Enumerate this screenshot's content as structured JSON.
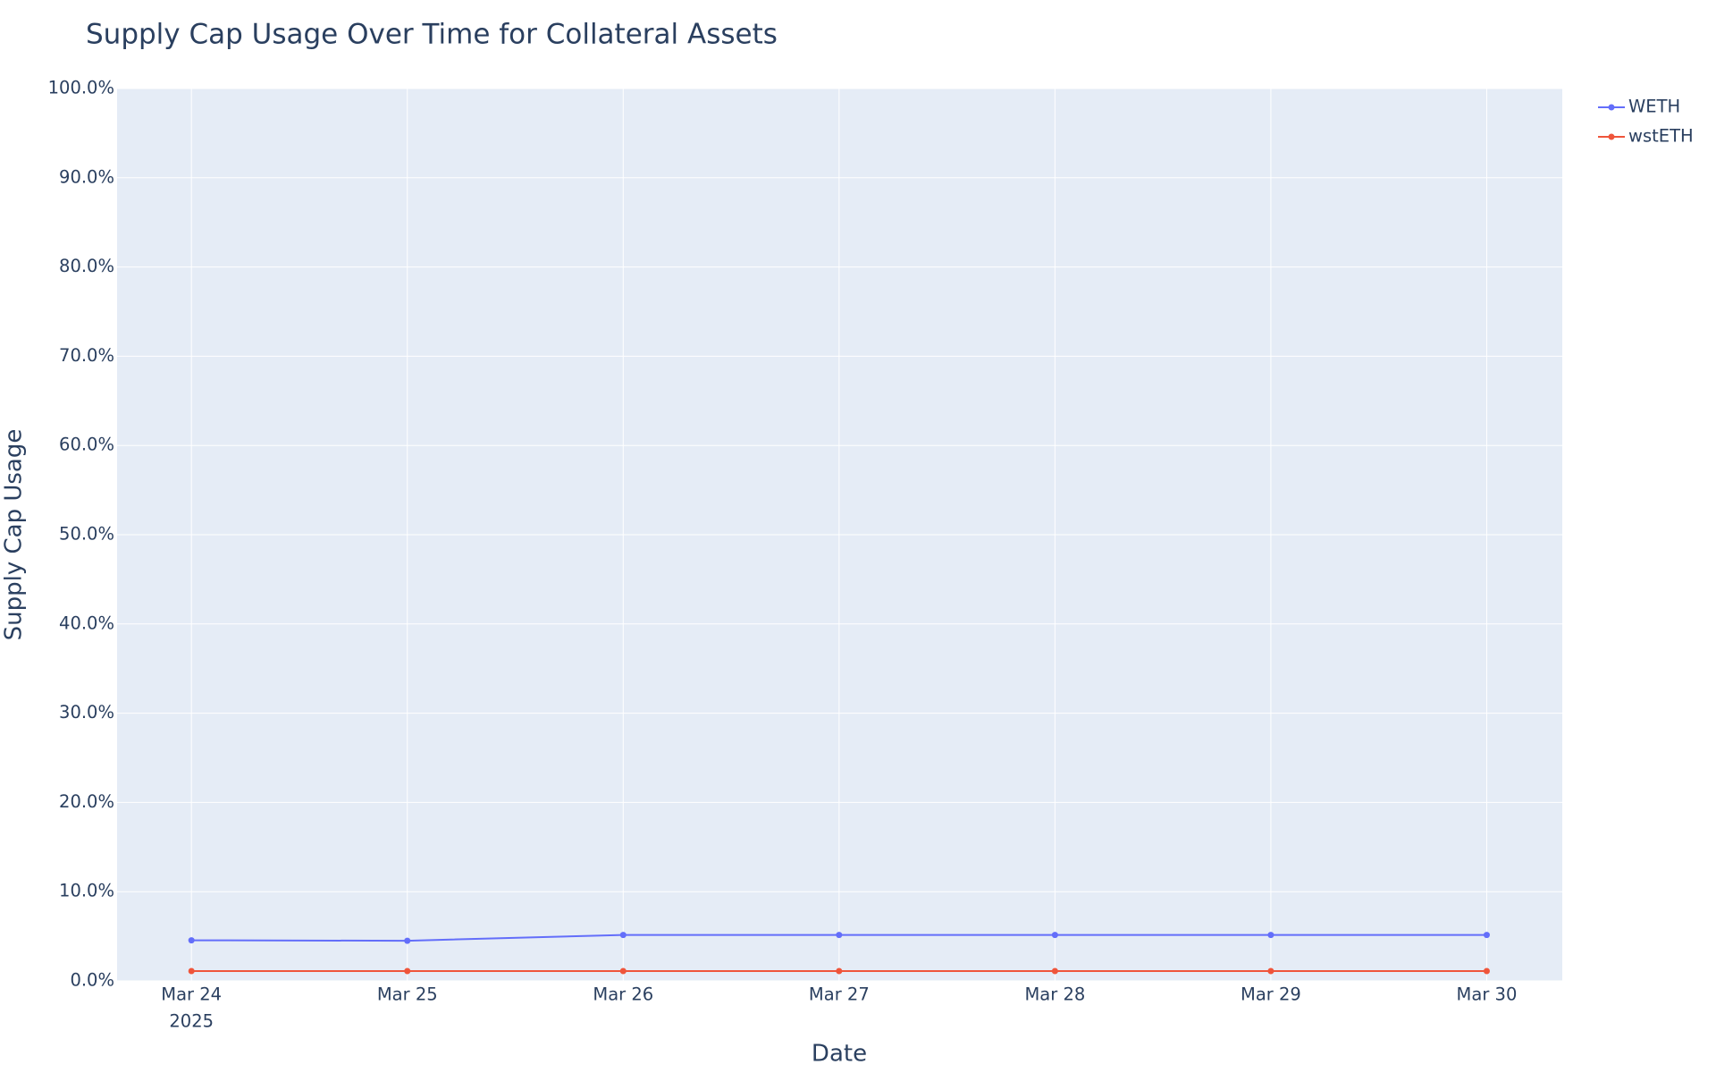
{
  "chart_data": {
    "type": "line",
    "title": "Supply Cap Usage Over Time for Collateral Assets",
    "x_label": "Date",
    "y_label": "Supply Cap Usage",
    "x": [
      "2025-03-24",
      "2025-03-25",
      "2025-03-26",
      "2025-03-27",
      "2025-03-28",
      "2025-03-29",
      "2025-03-30"
    ],
    "xlim": [
      "2025-03-23T15:44:00Z",
      "2025-03-30T08:24:00Z"
    ],
    "xticks": [
      {
        "value": "2025-03-24",
        "label": "Mar 24"
      },
      {
        "value": "2025-03-25",
        "label": "Mar 25"
      },
      {
        "value": "2025-03-26",
        "label": "Mar 26"
      },
      {
        "value": "2025-03-27",
        "label": "Mar 27"
      },
      {
        "value": "2025-03-28",
        "label": "Mar 28"
      },
      {
        "value": "2025-03-29",
        "label": "Mar 29"
      },
      {
        "value": "2025-03-30",
        "label": "Mar 30"
      }
    ],
    "x_year_label": "2025",
    "ylim": [
      0,
      100
    ],
    "yticks": [
      {
        "value": 0,
        "label": "0.0%"
      },
      {
        "value": 10,
        "label": "10.0%"
      },
      {
        "value": 20,
        "label": "20.0%"
      },
      {
        "value": 30,
        "label": "30.0%"
      },
      {
        "value": 40,
        "label": "40.0%"
      },
      {
        "value": 50,
        "label": "50.0%"
      },
      {
        "value": 60,
        "label": "60.0%"
      },
      {
        "value": 70,
        "label": "70.0%"
      },
      {
        "value": 80,
        "label": "80.0%"
      },
      {
        "value": 90,
        "label": "90.0%"
      },
      {
        "value": 100,
        "label": "100.0%"
      }
    ],
    "grid": true,
    "legend": "right",
    "series": [
      {
        "name": "WETH",
        "color": "#636efa",
        "values": [
          4.55,
          4.5,
          5.15,
          5.15,
          5.15,
          5.15,
          5.15
        ]
      },
      {
        "name": "wstETH",
        "color": "#ef553b",
        "values": [
          1.1,
          1.1,
          1.1,
          1.1,
          1.1,
          1.1,
          1.1
        ]
      }
    ]
  }
}
